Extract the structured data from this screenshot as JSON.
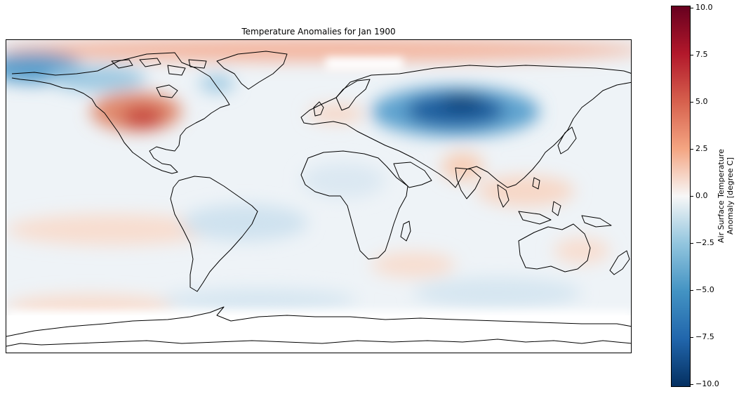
{
  "title": "Temperature Anomalies for Jan 1900",
  "colorbar": {
    "label": "Air Surface Temperature\nAnomaly [degree C]",
    "ticks": [
      "10.0",
      "7.5",
      "5.0",
      "2.5",
      "0.0",
      "−2.5",
      "−5.0",
      "−7.5",
      "−10.0"
    ],
    "range": [
      -10,
      10
    ],
    "colormap": [
      "#053061",
      "#2166ac",
      "#4393c3",
      "#92c5de",
      "#f7f7f7",
      "#f4a582",
      "#d6604d",
      "#b2182b",
      "#67001f"
    ]
  }
}
